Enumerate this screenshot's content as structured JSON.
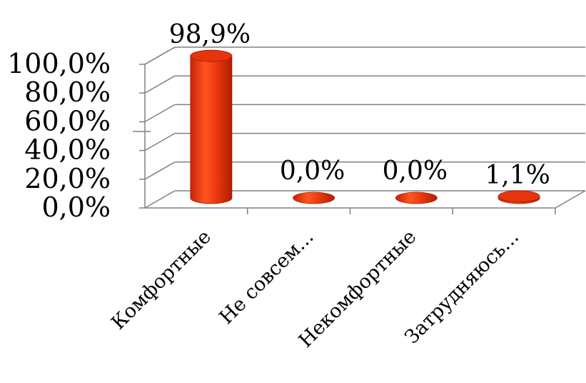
{
  "chart_data": {
    "type": "bar",
    "style": "3d-cylinder",
    "title": "",
    "xlabel": "",
    "ylabel": "",
    "categories": [
      "Комфортные",
      "Не совсем...",
      "Некомфортные",
      "Затрудняюсь..."
    ],
    "series": [
      {
        "values": [
          98.9,
          0.0,
          0.0,
          1.1
        ]
      }
    ],
    "data_labels": [
      "98,9%",
      "0,0%",
      "0,0%",
      "1,1%"
    ],
    "y_ticks": [
      "0,0%",
      "20,0%",
      "40,0%",
      "60,0%",
      "80,0%",
      "100,0%"
    ],
    "ylim": [
      0,
      100
    ],
    "grid": true,
    "legend": "none",
    "bar_color": "#e8340c",
    "bar_highlight": "#ff6a3d",
    "bar_shadow": "#b82000"
  }
}
